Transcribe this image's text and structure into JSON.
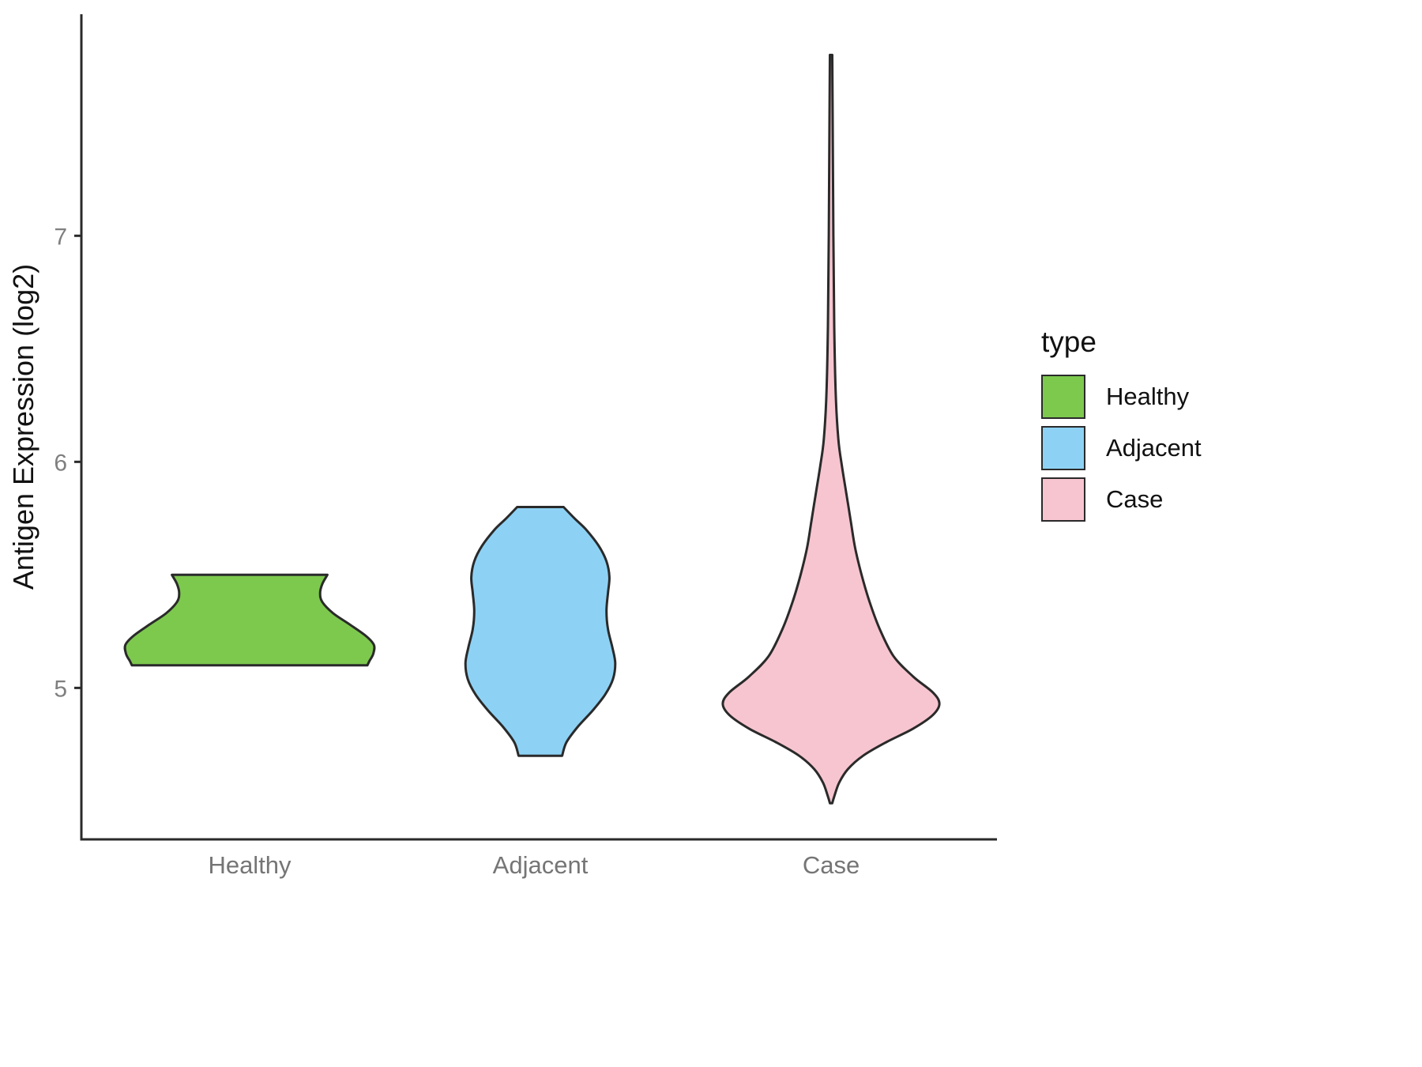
{
  "chart_data": {
    "type": "violin",
    "ylabel": "Antigen Expression (log2)",
    "xlabel": "",
    "categories": [
      "Healthy",
      "Adjacent",
      "Case"
    ],
    "y_ticks": [
      5,
      6,
      7
    ],
    "y_domain": [
      4.33,
      7.98
    ],
    "grid": "off",
    "axis_color": "#2a2a2a",
    "tick_label_color": "#7f7f7f",
    "legend": {
      "title": "type",
      "position": "right",
      "entries": [
        {
          "label": "Healthy",
          "color": "#7dc94e"
        },
        {
          "label": "Adjacent",
          "color": "#8dd2f5"
        },
        {
          "label": "Case",
          "color": "#f7c5d0"
        }
      ]
    },
    "series": [
      {
        "name": "Healthy",
        "fill": "#7dc94e",
        "outline": "#2a2a2a",
        "y_range": [
          5.1,
          5.5
        ],
        "cap": "flat",
        "profile": [
          [
            5.5,
            0.535
          ],
          [
            5.46,
            0.5
          ],
          [
            5.42,
            0.485
          ],
          [
            5.38,
            0.5
          ],
          [
            5.33,
            0.575
          ],
          [
            5.28,
            0.69
          ],
          [
            5.23,
            0.8
          ],
          [
            5.19,
            0.855
          ],
          [
            5.15,
            0.85
          ],
          [
            5.12,
            0.825
          ],
          [
            5.1,
            0.81
          ]
        ]
      },
      {
        "name": "Adjacent",
        "fill": "#8dd2f5",
        "outline": "#2a2a2a",
        "y_range": [
          4.7,
          5.8
        ],
        "cap": "flat",
        "profile": [
          [
            5.8,
            0.16
          ],
          [
            5.75,
            0.235
          ],
          [
            5.7,
            0.315
          ],
          [
            5.63,
            0.4
          ],
          [
            5.56,
            0.455
          ],
          [
            5.49,
            0.475
          ],
          [
            5.42,
            0.465
          ],
          [
            5.34,
            0.455
          ],
          [
            5.26,
            0.465
          ],
          [
            5.18,
            0.495
          ],
          [
            5.11,
            0.515
          ],
          [
            5.04,
            0.5
          ],
          [
            4.97,
            0.445
          ],
          [
            4.9,
            0.36
          ],
          [
            4.83,
            0.26
          ],
          [
            4.76,
            0.18
          ],
          [
            4.7,
            0.15
          ]
        ]
      },
      {
        "name": "Case",
        "fill": "#f7c5d0",
        "outline": "#2a2a2a",
        "y_range": [
          4.49,
          7.8
        ],
        "cap": "point",
        "profile": [
          [
            7.8,
            0.008
          ],
          [
            7.4,
            0.012
          ],
          [
            7.0,
            0.016
          ],
          [
            6.6,
            0.022
          ],
          [
            6.3,
            0.032
          ],
          [
            6.1,
            0.05
          ],
          [
            5.98,
            0.075
          ],
          [
            5.86,
            0.105
          ],
          [
            5.74,
            0.135
          ],
          [
            5.62,
            0.165
          ],
          [
            5.5,
            0.21
          ],
          [
            5.38,
            0.265
          ],
          [
            5.26,
            0.335
          ],
          [
            5.14,
            0.43
          ],
          [
            5.05,
            0.565
          ],
          [
            4.98,
            0.7
          ],
          [
            4.93,
            0.745
          ],
          [
            4.88,
            0.7
          ],
          [
            4.82,
            0.565
          ],
          [
            4.76,
            0.38
          ],
          [
            4.7,
            0.22
          ],
          [
            4.64,
            0.115
          ],
          [
            4.58,
            0.055
          ],
          [
            4.52,
            0.022
          ],
          [
            4.49,
            0.008
          ]
        ]
      }
    ]
  }
}
